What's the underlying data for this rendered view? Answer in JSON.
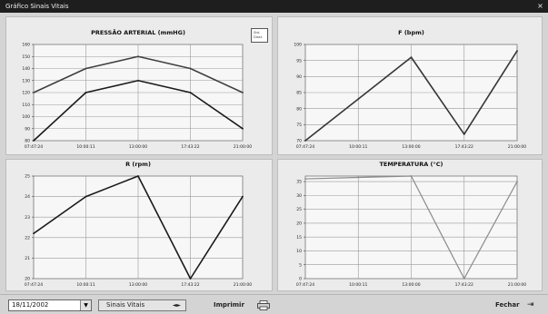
{
  "window": {
    "title": "Gráfico Sinais Vitais"
  },
  "footer": {
    "date_value": "18/11/2002",
    "graph_button_label": "Sinais Vitais",
    "print_label": "Imprimir",
    "close_label": "Fechar"
  },
  "chart_data": [
    {
      "type": "line",
      "title": "PRESSÃO ARTERIAL (mmHG)",
      "x": [
        "07:47:24",
        "10:00:11",
        "13:00:00",
        "17:43:22",
        "21:00:00"
      ],
      "ylim": [
        80,
        160
      ],
      "yticks": [
        "80",
        "90",
        "100",
        "110",
        "120",
        "130",
        "140",
        "150",
        "160"
      ],
      "series": [
        {
          "name": "Sist.",
          "values": [
            120,
            140,
            150,
            140,
            120
          ],
          "color": "#404040"
        },
        {
          "name": "Diast.",
          "values": [
            80,
            120,
            130,
            120,
            90
          ],
          "color": "#1a1a1a"
        }
      ],
      "legend": "top-right",
      "grid": true
    },
    {
      "type": "line",
      "title": "F (bpm)",
      "x": [
        "07:47:24",
        "10:00:11",
        "13:00:00",
        "17:43:22",
        "21:00:00"
      ],
      "ylim": [
        70,
        100
      ],
      "yticks": [
        "70",
        "75",
        "80",
        "85",
        "90",
        "95",
        "100"
      ],
      "series": [
        {
          "values": [
            70,
            83,
            96,
            72,
            98
          ],
          "color": "#353535"
        }
      ],
      "grid": true
    },
    {
      "type": "line",
      "title": "R (rpm)",
      "x": [
        "07:47:24",
        "10:00:11",
        "13:00:00",
        "17:43:22",
        "21:00:00"
      ],
      "ylim": [
        20,
        25
      ],
      "yticks": [
        "20",
        "21",
        "22",
        "23",
        "24",
        "25"
      ],
      "series": [
        {
          "values": [
            22.2,
            24.0,
            25.0,
            20.0,
            24.0
          ],
          "color": "#1a1a1a"
        }
      ],
      "grid": true
    },
    {
      "type": "line",
      "title": "TEMPERATURA (°C)",
      "x": [
        "07:47:24",
        "10:00:11",
        "13:00:00",
        "17:43:22",
        "21:00:00"
      ],
      "ylim": [
        0,
        37
      ],
      "yticks": [
        "0",
        "5",
        "10",
        "15",
        "20",
        "25",
        "30",
        "35"
      ],
      "series": [
        {
          "values": [
            36,
            36.5,
            37,
            0,
            35
          ],
          "color": "#8a8a8a"
        }
      ],
      "grid": true
    }
  ]
}
